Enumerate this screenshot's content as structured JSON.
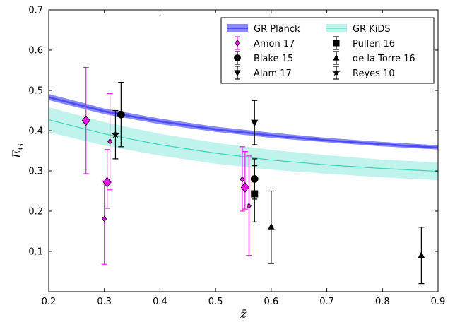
{
  "chart_data": {
    "type": "scatter",
    "title": "",
    "xlabel": "z̄",
    "ylabel_main": "E",
    "ylabel_sub": "G",
    "xlim": [
      0.2,
      0.9
    ],
    "ylim": [
      0.0,
      0.7
    ],
    "xticks": [
      "0.2",
      "0.3",
      "0.4",
      "0.5",
      "0.6",
      "0.7",
      "0.8",
      "0.9"
    ],
    "yticks": [
      "0.1",
      "0.2",
      "0.3",
      "0.4",
      "0.5",
      "0.6",
      "0.7"
    ],
    "grid": false,
    "legend_position": "top-right",
    "colors": {
      "planck": "#4b4bf5",
      "planck_band": "#8a8af7",
      "kids_line": "#3fd5c0",
      "kids_band": "#bff3eb",
      "amon": "#e619e6",
      "black": "#000000"
    },
    "bands": [
      {
        "name": "GR Planck",
        "x": [
          0.2,
          0.3,
          0.4,
          0.5,
          0.6,
          0.7,
          0.8,
          0.9
        ],
        "y": [
          0.483,
          0.448,
          0.423,
          0.403,
          0.388,
          0.376,
          0.366,
          0.358
        ],
        "lower": [
          0.476,
          0.441,
          0.416,
          0.397,
          0.382,
          0.371,
          0.361,
          0.353
        ],
        "upper": [
          0.491,
          0.455,
          0.43,
          0.41,
          0.395,
          0.382,
          0.372,
          0.364
        ]
      },
      {
        "name": "GR KiDS",
        "x": [
          0.2,
          0.3,
          0.4,
          0.5,
          0.6,
          0.7,
          0.8,
          0.9
        ],
        "y": [
          0.427,
          0.392,
          0.365,
          0.344,
          0.327,
          0.315,
          0.306,
          0.299
        ],
        "lower": [
          0.396,
          0.363,
          0.338,
          0.318,
          0.303,
          0.293,
          0.284,
          0.277
        ],
        "upper": [
          0.458,
          0.421,
          0.392,
          0.37,
          0.352,
          0.339,
          0.328,
          0.321
        ]
      }
    ],
    "series": [
      {
        "name": "Amon 17",
        "marker": "diamond",
        "color": "#e619e6",
        "points": [
          {
            "x": 0.267,
            "y": 0.425,
            "lo": 0.293,
            "hi": 0.557,
            "size": "large"
          },
          {
            "x": 0.3,
            "y": 0.181,
            "lo": 0.068,
            "hi": 0.275,
            "size": "small"
          },
          {
            "x": 0.305,
            "y": 0.272,
            "lo": 0.207,
            "hi": 0.353,
            "size": "large"
          },
          {
            "x": 0.31,
            "y": 0.373,
            "lo": 0.253,
            "hi": 0.492,
            "size": "small"
          },
          {
            "x": 0.548,
            "y": 0.279,
            "lo": 0.2,
            "hi": 0.36,
            "size": "small"
          },
          {
            "x": 0.553,
            "y": 0.259,
            "lo": 0.205,
            "hi": 0.348,
            "size": "large"
          },
          {
            "x": 0.56,
            "y": 0.213,
            "lo": 0.09,
            "hi": 0.337,
            "size": "small"
          }
        ]
      },
      {
        "name": "Blake 15",
        "marker": "circle",
        "color": "#000000",
        "points": [
          {
            "x": 0.33,
            "y": 0.44,
            "lo": 0.36,
            "hi": 0.52
          },
          {
            "x": 0.57,
            "y": 0.28,
            "lo": 0.23,
            "hi": 0.33
          }
        ]
      },
      {
        "name": "Alam 17",
        "marker": "triangle-down",
        "color": "#000000",
        "points": [
          {
            "x": 0.57,
            "y": 0.42,
            "lo": 0.365,
            "hi": 0.475
          }
        ]
      },
      {
        "name": "Pullen 16",
        "marker": "square",
        "color": "#000000",
        "points": [
          {
            "x": 0.57,
            "y": 0.243,
            "lo": 0.173,
            "hi": 0.313
          }
        ]
      },
      {
        "name": "de la Torre 16",
        "marker": "triangle-up",
        "color": "#000000",
        "points": [
          {
            "x": 0.6,
            "y": 0.16,
            "lo": 0.07,
            "hi": 0.25
          },
          {
            "x": 0.87,
            "y": 0.09,
            "lo": 0.02,
            "hi": 0.16
          }
        ]
      },
      {
        "name": "Reyes 10",
        "marker": "star",
        "color": "#000000",
        "points": [
          {
            "x": 0.32,
            "y": 0.39,
            "lo": 0.33,
            "hi": 0.45
          }
        ]
      }
    ],
    "legend": [
      {
        "label": "GR Planck",
        "kind": "band",
        "key": "planck",
        "col": 0,
        "row": 0
      },
      {
        "label": "GR KiDS",
        "kind": "band",
        "key": "kids",
        "col": 1,
        "row": 0
      },
      {
        "label": "Amon 17",
        "kind": "marker",
        "marker": "diamond",
        "color": "#e619e6",
        "col": 0,
        "row": 1
      },
      {
        "label": "Pullen 16",
        "kind": "marker",
        "marker": "square",
        "color": "#000000",
        "col": 1,
        "row": 1
      },
      {
        "label": "Blake 15",
        "kind": "marker",
        "marker": "circle",
        "color": "#000000",
        "col": 0,
        "row": 2
      },
      {
        "label": "de la Torre 16",
        "kind": "marker",
        "marker": "triangle-up",
        "color": "#000000",
        "col": 1,
        "row": 2
      },
      {
        "label": "Alam 17",
        "kind": "marker",
        "marker": "triangle-down",
        "color": "#000000",
        "col": 0,
        "row": 3
      },
      {
        "label": "Reyes 10",
        "kind": "marker",
        "marker": "star",
        "color": "#000000",
        "col": 1,
        "row": 3
      }
    ]
  }
}
